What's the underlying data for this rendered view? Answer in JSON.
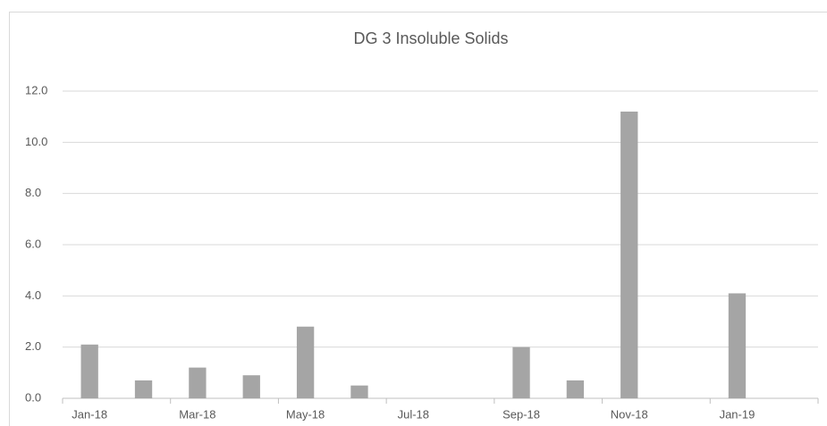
{
  "chart_data": {
    "type": "bar",
    "title": "DG 3 Insoluble Solids",
    "categories": [
      "Jan-18",
      null,
      "Mar-18",
      null,
      "May-18",
      null,
      "Jul-18",
      null,
      "Sep-18",
      null,
      "Nov-18",
      null,
      "Jan-19",
      null
    ],
    "values": [
      2.1,
      0.7,
      1.2,
      0.9,
      2.8,
      0.5,
      null,
      null,
      2.0,
      0.7,
      11.2,
      null,
      4.1,
      null
    ],
    "color": "#a5a5a5",
    "ylim": [
      0,
      12
    ],
    "yticks": [
      {
        "value": 0,
        "label": "0.0"
      },
      {
        "value": 2,
        "label": "2.0"
      },
      {
        "value": 4,
        "label": "4.0"
      },
      {
        "value": 6,
        "label": "6.0"
      },
      {
        "value": 8,
        "label": "8.0"
      },
      {
        "value": 10,
        "label": "10.0"
      },
      {
        "value": 12,
        "label": "12.0"
      }
    ],
    "grid": true
  }
}
